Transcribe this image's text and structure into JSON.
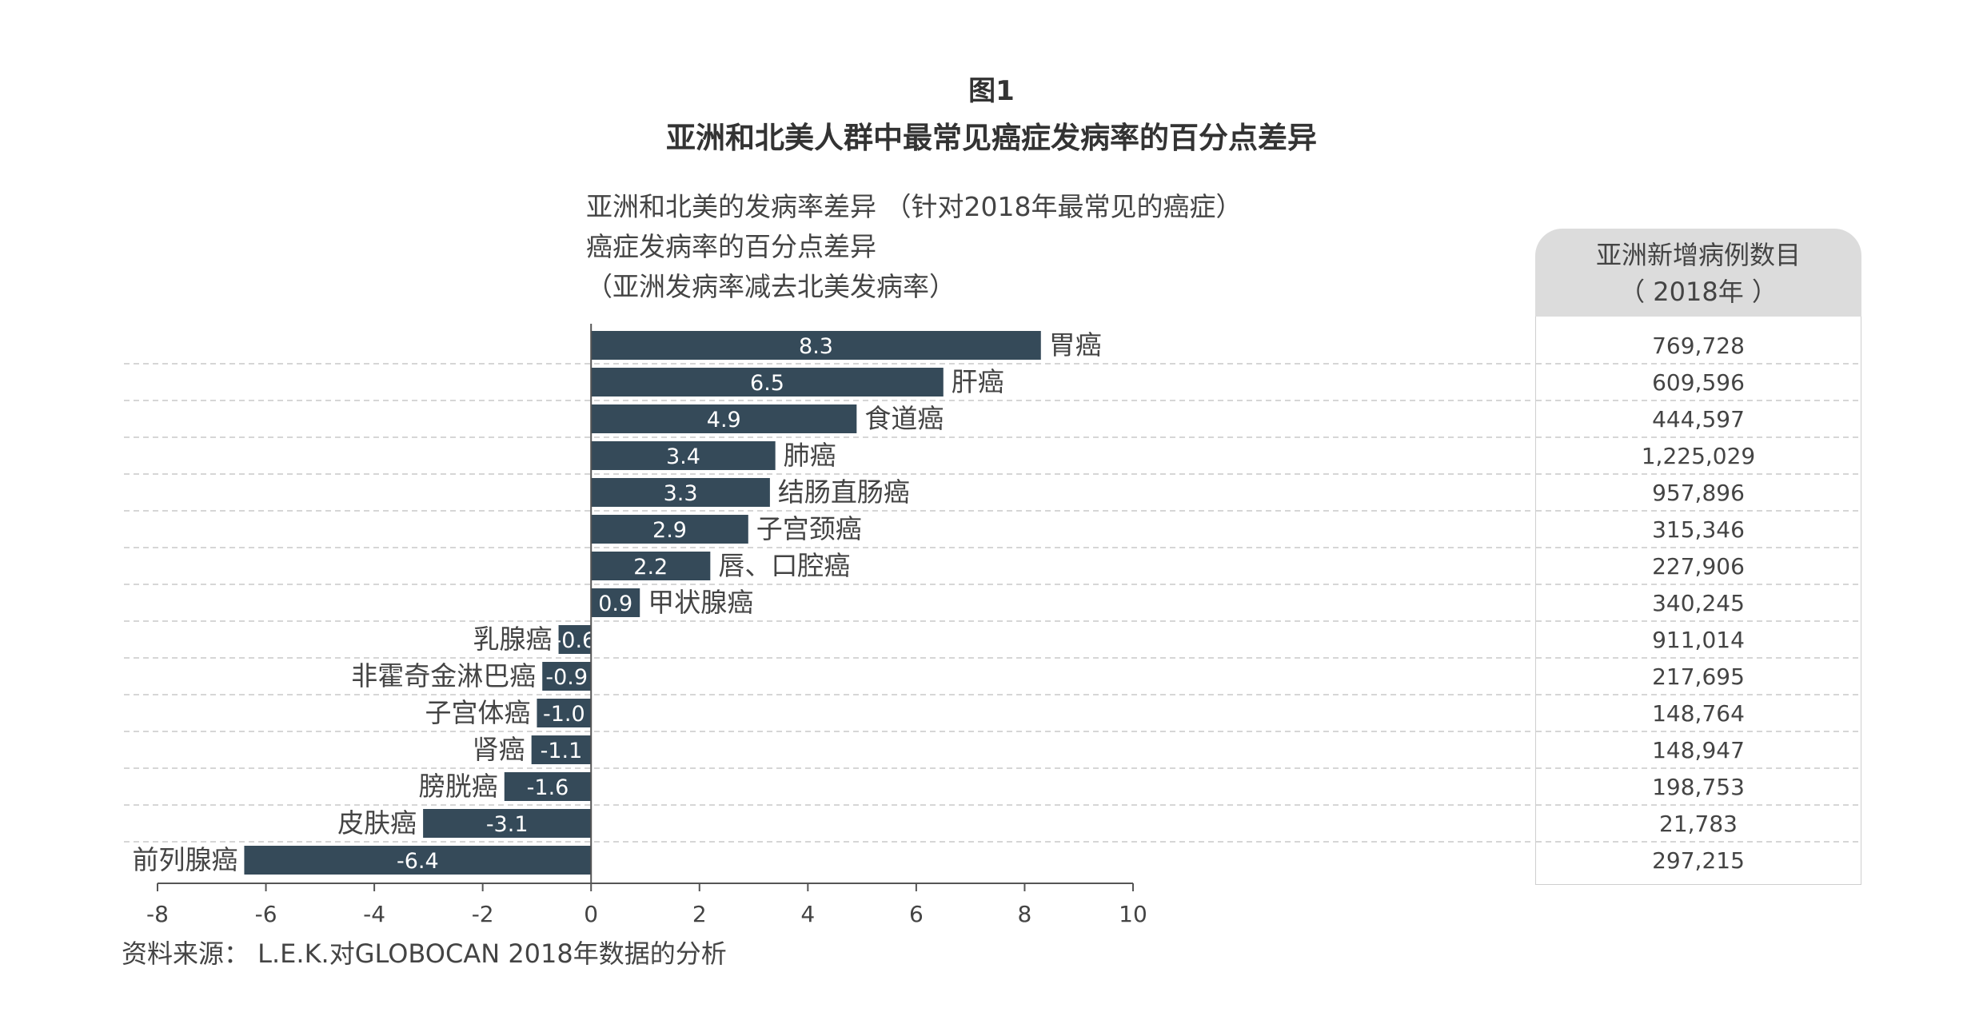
{
  "figure_label": "图1",
  "figure_title": "亚洲和北美人群中最常见癌症发病率的百分点差异",
  "chart_data": {
    "type": "bar",
    "orientation": "horizontal",
    "subtitle_lines": [
      "亚洲和北美的发病率差异 （针对2018年最常见的癌症）",
      "癌症发病率的百分点差异",
      "（亚洲发病率减去北美发病率）"
    ],
    "categories": [
      "胃癌",
      "肝癌",
      "食道癌",
      "肺癌",
      "结肠直肠癌",
      "子宫颈癌",
      "唇、口腔癌",
      "甲状腺癌",
      "乳腺癌",
      "非霍奇金淋巴癌",
      "子宫体癌",
      "肾癌",
      "膀胱癌",
      "皮肤癌",
      "前列腺癌"
    ],
    "values": [
      8.3,
      6.5,
      4.9,
      3.4,
      3.3,
      2.9,
      2.2,
      0.9,
      -0.6,
      -0.9,
      -1.0,
      -1.1,
      -1.6,
      -3.1,
      -6.4
    ],
    "value_labels": [
      "8.3",
      "6.5",
      "4.9",
      "3.4",
      "3.3",
      "2.9",
      "2.2",
      "0.9",
      "-0.6",
      "-0.9",
      "-1.0",
      "-1.1",
      "-1.6",
      "-3.1",
      "-6.4"
    ],
    "xlim": [
      -8,
      10
    ],
    "xticks": [
      "-8",
      "-6",
      "-4",
      "-2",
      "0",
      "2",
      "4",
      "6",
      "8",
      "10"
    ],
    "bar_color": "#354a59",
    "grid": "dashed horizontal row separators"
  },
  "table": {
    "header_line1": "亚洲新增病例数目",
    "header_line2": "（ 2018年 ）",
    "values": [
      "769,728",
      "609,596",
      "444,597",
      "1,225,029",
      "957,896",
      "315,346",
      "227,906",
      "340,245",
      "911,014",
      "217,695",
      "148,764",
      "148,947",
      "198,753",
      "21,783",
      "297,215"
    ]
  },
  "source": "资料来源： L.E.K.对GLOBOCAN 2018年数据的分析"
}
